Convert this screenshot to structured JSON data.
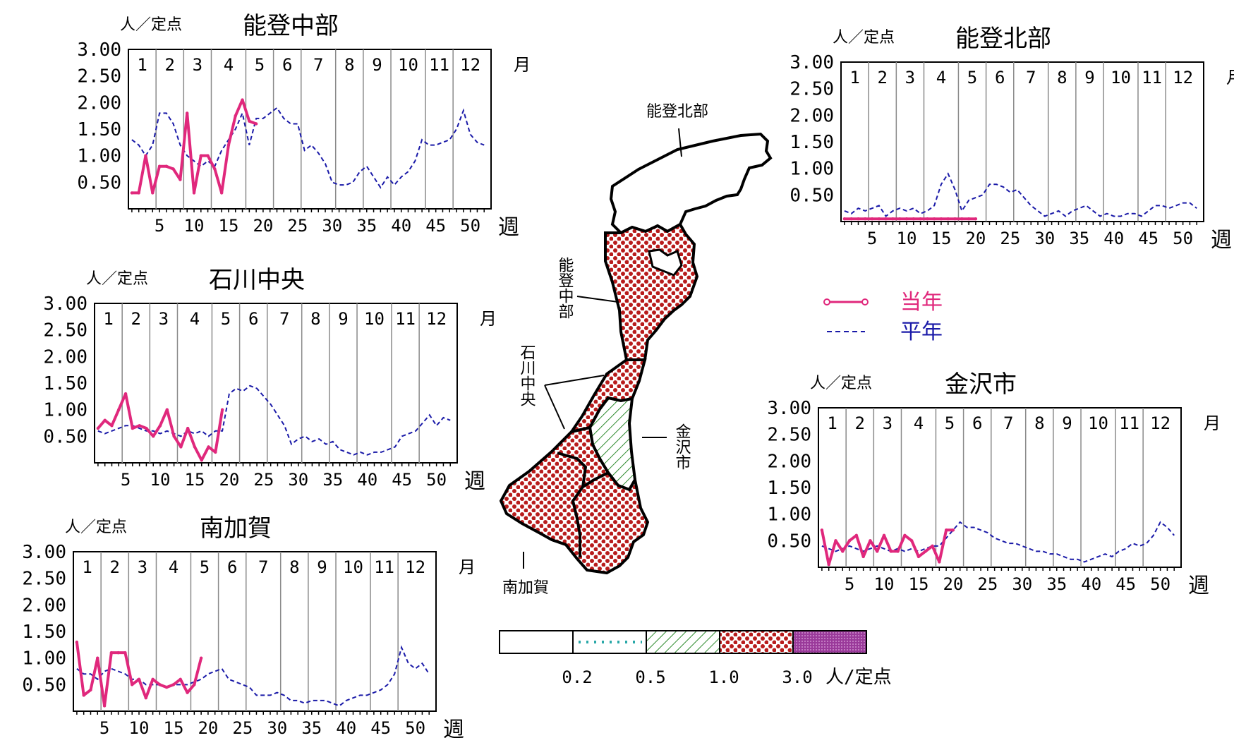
{
  "colors": {
    "current_year": "#e0287c",
    "normal_year": "#1a1aa8",
    "map_dots": "#b81c1c",
    "map_hatch": "#2e8b2e",
    "scale_dotted": "#2aa8a8",
    "scale_high": "#9a3a9a"
  },
  "labels": {
    "unit": "人／定点",
    "month": "月",
    "week": "週"
  },
  "legend": {
    "current": "当年",
    "normal": "平年"
  },
  "scale": {
    "ticks": [
      "0.2",
      "0.5",
      "1.0",
      "3.0"
    ],
    "unit": "人/定点"
  },
  "map": {
    "labels": {
      "noto_north": "能登北部",
      "noto_central": "能登中部",
      "ishikawa_central": "石川中央",
      "kanazawa": "金沢市",
      "minami_kaga": "南加賀"
    },
    "fills": {
      "noto_north": "none",
      "noto_central": "dots",
      "ishikawa_central": "dots",
      "kanazawa": "hatch",
      "minami_kaga": "dots"
    }
  },
  "chart_data": [
    {
      "type": "line",
      "title": "能登中部",
      "ylabel": "人／定点",
      "xlabel": "週",
      "ylim": [
        0,
        3
      ],
      "yticks": [
        "0.50",
        "1.00",
        "1.50",
        "2.00",
        "2.50",
        "3.00"
      ],
      "xticks": [
        "5",
        "10",
        "15",
        "20",
        "25",
        "30",
        "35",
        "40",
        "45",
        "50"
      ],
      "months": [
        "1",
        "2",
        "3",
        "4",
        "5",
        "6",
        "7",
        "8",
        "9",
        "10",
        "11",
        "12"
      ],
      "series": [
        {
          "name": "当年",
          "x": [
            1,
            2,
            3,
            4,
            5,
            6,
            7,
            8,
            9,
            10,
            11,
            12,
            13,
            14,
            15,
            16,
            17,
            18,
            19
          ],
          "values": [
            0.3,
            0.3,
            1.0,
            0.3,
            0.8,
            0.8,
            0.75,
            0.55,
            1.8,
            0.3,
            1.0,
            1.0,
            0.75,
            0.3,
            1.2,
            1.75,
            2.05,
            1.65,
            1.6
          ]
        },
        {
          "name": "平年",
          "x": [
            1,
            2,
            3,
            4,
            5,
            6,
            7,
            8,
            9,
            10,
            11,
            12,
            13,
            14,
            15,
            16,
            17,
            18,
            19,
            20,
            21,
            22,
            23,
            24,
            25,
            26,
            27,
            28,
            29,
            30,
            31,
            32,
            33,
            34,
            35,
            36,
            37,
            38,
            39,
            40,
            41,
            42,
            43,
            44,
            45,
            46,
            47,
            48,
            49,
            50,
            51,
            52
          ],
          "values": [
            1.3,
            1.2,
            1.0,
            1.2,
            1.8,
            1.8,
            1.6,
            1.2,
            1.0,
            0.9,
            0.8,
            0.9,
            0.8,
            1.1,
            1.3,
            1.5,
            1.8,
            1.2,
            1.7,
            1.7,
            1.8,
            1.9,
            1.7,
            1.6,
            1.6,
            1.1,
            1.2,
            1.05,
            0.85,
            0.5,
            0.45,
            0.45,
            0.5,
            0.7,
            0.8,
            0.6,
            0.4,
            0.6,
            0.45,
            0.6,
            0.7,
            0.9,
            1.3,
            1.2,
            1.2,
            1.25,
            1.3,
            1.5,
            1.85,
            1.4,
            1.25,
            1.2
          ]
        }
      ]
    },
    {
      "type": "line",
      "title": "能登北部",
      "ylabel": "人／定点",
      "xlabel": "週",
      "ylim": [
        0,
        3
      ],
      "yticks": [
        "0.50",
        "1.00",
        "1.50",
        "2.00",
        "2.50",
        "3.00"
      ],
      "xticks": [
        "5",
        "10",
        "15",
        "20",
        "25",
        "30",
        "35",
        "40",
        "45",
        "50"
      ],
      "months": [
        "1",
        "2",
        "3",
        "4",
        "5",
        "6",
        "7",
        "8",
        "9",
        "10",
        "11",
        "12"
      ],
      "series": [
        {
          "name": "当年",
          "x": [
            1,
            2,
            3,
            4,
            5,
            6,
            7,
            8,
            9,
            10,
            11,
            12,
            13,
            14,
            15,
            16,
            17,
            18,
            19,
            20
          ],
          "values": [
            0.05,
            0.05,
            0.05,
            0.05,
            0.05,
            0.05,
            0.05,
            0.05,
            0.05,
            0.05,
            0.05,
            0.05,
            0.05,
            0.05,
            0.05,
            0.05,
            0.05,
            0.05,
            0.05,
            0.05
          ]
        },
        {
          "name": "平年",
          "x": [
            1,
            2,
            3,
            4,
            5,
            6,
            7,
            8,
            9,
            10,
            11,
            12,
            13,
            14,
            15,
            16,
            17,
            18,
            19,
            20,
            21,
            22,
            23,
            24,
            25,
            26,
            27,
            28,
            29,
            30,
            31,
            32,
            33,
            34,
            35,
            36,
            37,
            38,
            39,
            40,
            41,
            42,
            43,
            44,
            45,
            46,
            47,
            48,
            49,
            50,
            51,
            52
          ],
          "values": [
            0.2,
            0.15,
            0.25,
            0.2,
            0.25,
            0.3,
            0.1,
            0.2,
            0.25,
            0.2,
            0.25,
            0.15,
            0.2,
            0.3,
            0.7,
            0.9,
            0.6,
            0.2,
            0.4,
            0.45,
            0.5,
            0.7,
            0.7,
            0.65,
            0.55,
            0.6,
            0.45,
            0.3,
            0.2,
            0.1,
            0.15,
            0.2,
            0.1,
            0.2,
            0.25,
            0.3,
            0.2,
            0.1,
            0.15,
            0.1,
            0.1,
            0.15,
            0.15,
            0.1,
            0.2,
            0.3,
            0.3,
            0.25,
            0.3,
            0.35,
            0.35,
            0.25
          ]
        }
      ]
    },
    {
      "type": "line",
      "title": "石川中央",
      "ylabel": "人／定点",
      "xlabel": "週",
      "ylim": [
        0,
        3
      ],
      "yticks": [
        "0.50",
        "1.00",
        "1.50",
        "2.00",
        "2.50",
        "3.00"
      ],
      "xticks": [
        "5",
        "10",
        "15",
        "20",
        "25",
        "30",
        "35",
        "40",
        "45",
        "50"
      ],
      "months": [
        "1",
        "2",
        "3",
        "4",
        "5",
        "6",
        "7",
        "8",
        "9",
        "10",
        "11",
        "12"
      ],
      "series": [
        {
          "name": "当年",
          "x": [
            1,
            2,
            3,
            4,
            5,
            6,
            7,
            8,
            9,
            10,
            11,
            12,
            13,
            14,
            15,
            16,
            17,
            18,
            19
          ],
          "values": [
            0.65,
            0.8,
            0.7,
            1.0,
            1.3,
            0.65,
            0.7,
            0.65,
            0.5,
            0.7,
            1.0,
            0.5,
            0.3,
            0.65,
            0.3,
            0.05,
            0.3,
            0.2,
            1.0
          ]
        },
        {
          "name": "平年",
          "x": [
            1,
            2,
            3,
            4,
            5,
            6,
            7,
            8,
            9,
            10,
            11,
            12,
            13,
            14,
            15,
            16,
            17,
            18,
            19,
            20,
            21,
            22,
            23,
            24,
            25,
            26,
            27,
            28,
            29,
            30,
            31,
            32,
            33,
            34,
            35,
            36,
            37,
            38,
            39,
            40,
            41,
            42,
            43,
            44,
            45,
            46,
            47,
            48,
            49,
            50,
            51,
            52
          ],
          "values": [
            0.6,
            0.55,
            0.6,
            0.65,
            0.7,
            0.7,
            0.65,
            0.6,
            0.6,
            0.55,
            0.6,
            0.55,
            0.5,
            0.6,
            0.55,
            0.6,
            0.5,
            0.6,
            0.6,
            1.3,
            1.4,
            1.35,
            1.45,
            1.4,
            1.25,
            1.1,
            0.9,
            0.7,
            0.35,
            0.45,
            0.5,
            0.4,
            0.45,
            0.35,
            0.4,
            0.25,
            0.2,
            0.15,
            0.2,
            0.15,
            0.2,
            0.2,
            0.25,
            0.3,
            0.5,
            0.55,
            0.6,
            0.75,
            0.9,
            0.7,
            0.85,
            0.8
          ]
        }
      ]
    },
    {
      "type": "line",
      "title": "金沢市",
      "ylabel": "人／定点",
      "xlabel": "週",
      "ylim": [
        0,
        3
      ],
      "yticks": [
        "0.50",
        "1.00",
        "1.50",
        "2.00",
        "2.50",
        "3.00"
      ],
      "xticks": [
        "5",
        "10",
        "15",
        "20",
        "25",
        "30",
        "35",
        "40",
        "45",
        "50"
      ],
      "months": [
        "1",
        "2",
        "3",
        "4",
        "5",
        "6",
        "7",
        "8",
        "9",
        "10",
        "11",
        "12"
      ],
      "series": [
        {
          "name": "当年",
          "x": [
            1,
            2,
            3,
            4,
            5,
            6,
            7,
            8,
            9,
            10,
            11,
            12,
            13,
            14,
            15,
            16,
            17,
            18,
            19,
            20
          ],
          "values": [
            0.7,
            0.05,
            0.5,
            0.3,
            0.5,
            0.6,
            0.2,
            0.5,
            0.3,
            0.6,
            0.3,
            0.3,
            0.6,
            0.5,
            0.2,
            0.3,
            0.4,
            0.1,
            0.7,
            0.7
          ]
        },
        {
          "name": "平年",
          "x": [
            1,
            2,
            3,
            4,
            5,
            6,
            7,
            8,
            9,
            10,
            11,
            12,
            13,
            14,
            15,
            16,
            17,
            18,
            19,
            20,
            21,
            22,
            23,
            24,
            25,
            26,
            27,
            28,
            29,
            30,
            31,
            32,
            33,
            34,
            35,
            36,
            37,
            38,
            39,
            40,
            41,
            42,
            43,
            44,
            45,
            46,
            47,
            48,
            49,
            50,
            51,
            52
          ],
          "values": [
            0.4,
            0.35,
            0.3,
            0.35,
            0.4,
            0.35,
            0.3,
            0.35,
            0.4,
            0.35,
            0.3,
            0.35,
            0.3,
            0.35,
            0.3,
            0.35,
            0.4,
            0.4,
            0.55,
            0.7,
            0.85,
            0.75,
            0.75,
            0.7,
            0.65,
            0.55,
            0.5,
            0.45,
            0.45,
            0.4,
            0.35,
            0.3,
            0.3,
            0.25,
            0.25,
            0.2,
            0.15,
            0.15,
            0.1,
            0.15,
            0.2,
            0.25,
            0.2,
            0.3,
            0.35,
            0.45,
            0.4,
            0.45,
            0.6,
            0.85,
            0.75,
            0.6
          ]
        }
      ]
    },
    {
      "type": "line",
      "title": "南加賀",
      "ylabel": "人／定点",
      "xlabel": "週",
      "ylim": [
        0,
        3
      ],
      "yticks": [
        "0.50",
        "1.00",
        "1.50",
        "2.00",
        "2.50",
        "3.00"
      ],
      "xticks": [
        "5",
        "10",
        "15",
        "20",
        "25",
        "30",
        "35",
        "40",
        "45",
        "50"
      ],
      "months": [
        "1",
        "2",
        "3",
        "4",
        "5",
        "6",
        "7",
        "8",
        "9",
        "10",
        "11",
        "12"
      ],
      "series": [
        {
          "name": "当年",
          "x": [
            1,
            2,
            3,
            4,
            5,
            6,
            7,
            8,
            9,
            10,
            11,
            12,
            13,
            14,
            15,
            16,
            17,
            18,
            19
          ],
          "values": [
            1.3,
            0.3,
            0.4,
            1.0,
            0.1,
            1.1,
            1.1,
            1.1,
            0.5,
            0.6,
            0.25,
            0.6,
            0.5,
            0.45,
            0.5,
            0.6,
            0.35,
            0.5,
            1.0
          ]
        },
        {
          "name": "平年",
          "x": [
            1,
            2,
            3,
            4,
            5,
            6,
            7,
            8,
            9,
            10,
            11,
            12,
            13,
            14,
            15,
            16,
            17,
            18,
            19,
            20,
            21,
            22,
            23,
            24,
            25,
            26,
            27,
            28,
            29,
            30,
            31,
            32,
            33,
            34,
            35,
            36,
            37,
            38,
            39,
            40,
            41,
            42,
            43,
            44,
            45,
            46,
            47,
            48,
            49,
            50,
            51,
            52
          ],
          "values": [
            0.8,
            0.7,
            0.7,
            0.6,
            0.75,
            0.8,
            0.75,
            0.7,
            0.6,
            0.6,
            0.5,
            0.5,
            0.5,
            0.45,
            0.5,
            0.5,
            0.5,
            0.55,
            0.6,
            0.7,
            0.75,
            0.8,
            0.6,
            0.55,
            0.5,
            0.45,
            0.3,
            0.3,
            0.3,
            0.35,
            0.3,
            0.2,
            0.2,
            0.15,
            0.2,
            0.2,
            0.2,
            0.15,
            0.1,
            0.2,
            0.25,
            0.3,
            0.3,
            0.35,
            0.4,
            0.5,
            0.7,
            1.2,
            0.9,
            0.8,
            0.9,
            0.7
          ]
        }
      ]
    }
  ]
}
